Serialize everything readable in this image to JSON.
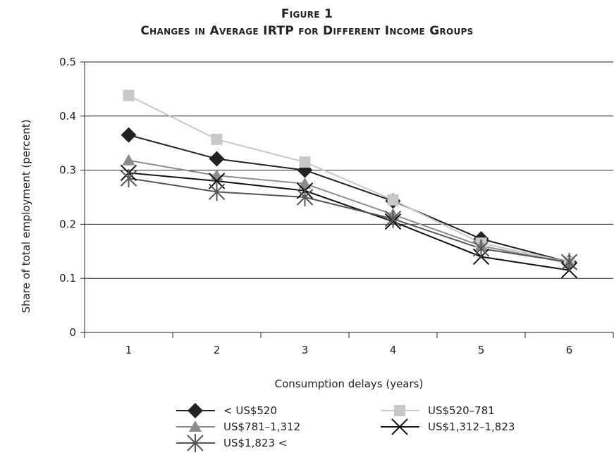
{
  "figure_label": "Figure 1",
  "title": "Changes in Average IRTP for Different Income Groups",
  "chart_data": {
    "type": "line",
    "title": "Changes in Average IRTP for Different Income Groups",
    "xlabel": "Consumption delays (years)",
    "ylabel": "Share of total employment (percent)",
    "categories": [
      "1",
      "2",
      "3",
      "4",
      "5",
      "6"
    ],
    "ylim": [
      0,
      0.5
    ],
    "yticks": [
      0,
      0.1,
      0.2,
      0.3,
      0.4,
      0.5
    ],
    "ytick_labels": [
      "0",
      "0.1",
      "0.2",
      "0.3",
      "0.4",
      "0.5"
    ],
    "grid": "horizontal",
    "legend_position": "bottom",
    "series": [
      {
        "name": "< US$520",
        "marker": "diamond",
        "color": "#222222",
        "values": [
          0.365,
          0.321,
          0.3,
          0.243,
          0.173,
          0.13
        ]
      },
      {
        "name": "US$520–781",
        "marker": "square",
        "color": "#c8c8c8",
        "values": [
          0.438,
          0.357,
          0.315,
          0.245,
          0.165,
          0.13
        ]
      },
      {
        "name": "US$781–1,312",
        "marker": "triangle",
        "color": "#8c8c8c",
        "values": [
          0.318,
          0.29,
          0.275,
          0.218,
          0.16,
          0.128
        ]
      },
      {
        "name": "US$1,312–1,823",
        "marker": "x",
        "color": "#111111",
        "values": [
          0.295,
          0.28,
          0.262,
          0.205,
          0.14,
          0.115
        ]
      },
      {
        "name": "US$1,823 <",
        "marker": "star",
        "color": "#555555",
        "values": [
          0.285,
          0.26,
          0.25,
          0.21,
          0.155,
          0.13
        ]
      }
    ]
  }
}
